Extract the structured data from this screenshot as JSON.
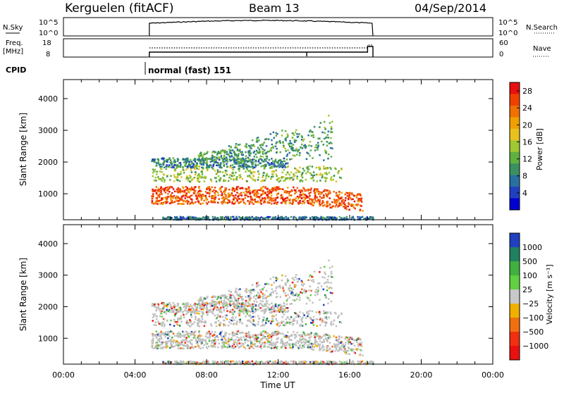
{
  "header": {
    "station": "Kerguelen (fitACF)",
    "beam": "Beam 13",
    "date": "04/Sep/2014"
  },
  "noise_panel": {
    "left_label": "N.Sky",
    "right_label": "N.Search",
    "left_ticks": [
      "10^5",
      "10^0"
    ],
    "right_ticks": [
      "10^5",
      "10^0"
    ]
  },
  "freq_panel": {
    "left_label_top": "Freq.",
    "left_label_bottom": "[MHz]",
    "right_label": "Nave",
    "left_ticks": [
      "18",
      "8"
    ],
    "right_ticks": [
      "60",
      "0"
    ]
  },
  "cpid": {
    "label": "CPID",
    "program": "normal (fast) 151"
  },
  "chart_data": [
    {
      "type": "heatmap",
      "panel": "power",
      "ylabel": "Slant Range [km]",
      "xlabel": "",
      "ylim": [
        180,
        4600
      ],
      "yticks": [
        "1000",
        "2000",
        "3000",
        "4000"
      ],
      "ytick_values": [
        1000,
        2000,
        3000,
        4000
      ],
      "data_time_range_ut": [
        4.8,
        17.3
      ],
      "colorbar": {
        "label": "Power [dB]",
        "ticks": [
          "4",
          "8",
          "12",
          "16",
          "20",
          "24",
          "28"
        ],
        "range": [
          0,
          30
        ],
        "colors": [
          "#0000d0",
          "#2040c0",
          "#2870a0",
          "#3a9060",
          "#60b040",
          "#a0c830",
          "#e8c020",
          "#f0a000",
          "#f07000",
          "#f04000",
          "#e81010"
        ]
      },
      "echo_bands": [
        {
          "t_start": 4.9,
          "t_end": 16.7,
          "range_start": 700,
          "range_end": 1250,
          "level": 26
        },
        {
          "t_start": 4.9,
          "t_end": 15.5,
          "range_start": 1400,
          "range_end": 1900,
          "level": 14
        },
        {
          "t_start": 4.9,
          "t_end": 12.5,
          "range_start": 1850,
          "range_end": 2150,
          "level": 8
        },
        {
          "t_start": 7.5,
          "t_end": 15.0,
          "range_start": 2000,
          "range_end": 3300,
          "level": 10
        },
        {
          "t_start": 5.5,
          "t_end": 17.3,
          "range_start": 200,
          "range_end": 300,
          "level": 6
        }
      ]
    },
    {
      "type": "heatmap",
      "panel": "velocity",
      "ylabel": "Slant Range [km]",
      "xlabel": "Time UT",
      "ylim": [
        180,
        4600
      ],
      "yticks": [
        "1000",
        "2000",
        "3000",
        "4000"
      ],
      "ytick_values": [
        1000,
        2000,
        3000,
        4000
      ],
      "xticks": [
        "00:00",
        "04:00",
        "08:00",
        "12:00",
        "16:00",
        "20:00",
        "00:00"
      ],
      "xtick_values": [
        0,
        4,
        8,
        12,
        16,
        20,
        24
      ],
      "data_time_range_ut": [
        4.8,
        17.3
      ],
      "colorbar": {
        "label": "Velocity [m s⁻¹]",
        "ticks": [
          "1000",
          "500",
          "100",
          "25",
          "−25",
          "−100",
          "−500",
          "−1000"
        ],
        "colors": [
          "#2040c0",
          "#208060",
          "#40b040",
          "#60d040",
          "#c8c8c8",
          "#f0b000",
          "#f07010",
          "#f03010",
          "#e81010"
        ]
      },
      "ground_scatter_color": "#c0c0c0"
    }
  ]
}
